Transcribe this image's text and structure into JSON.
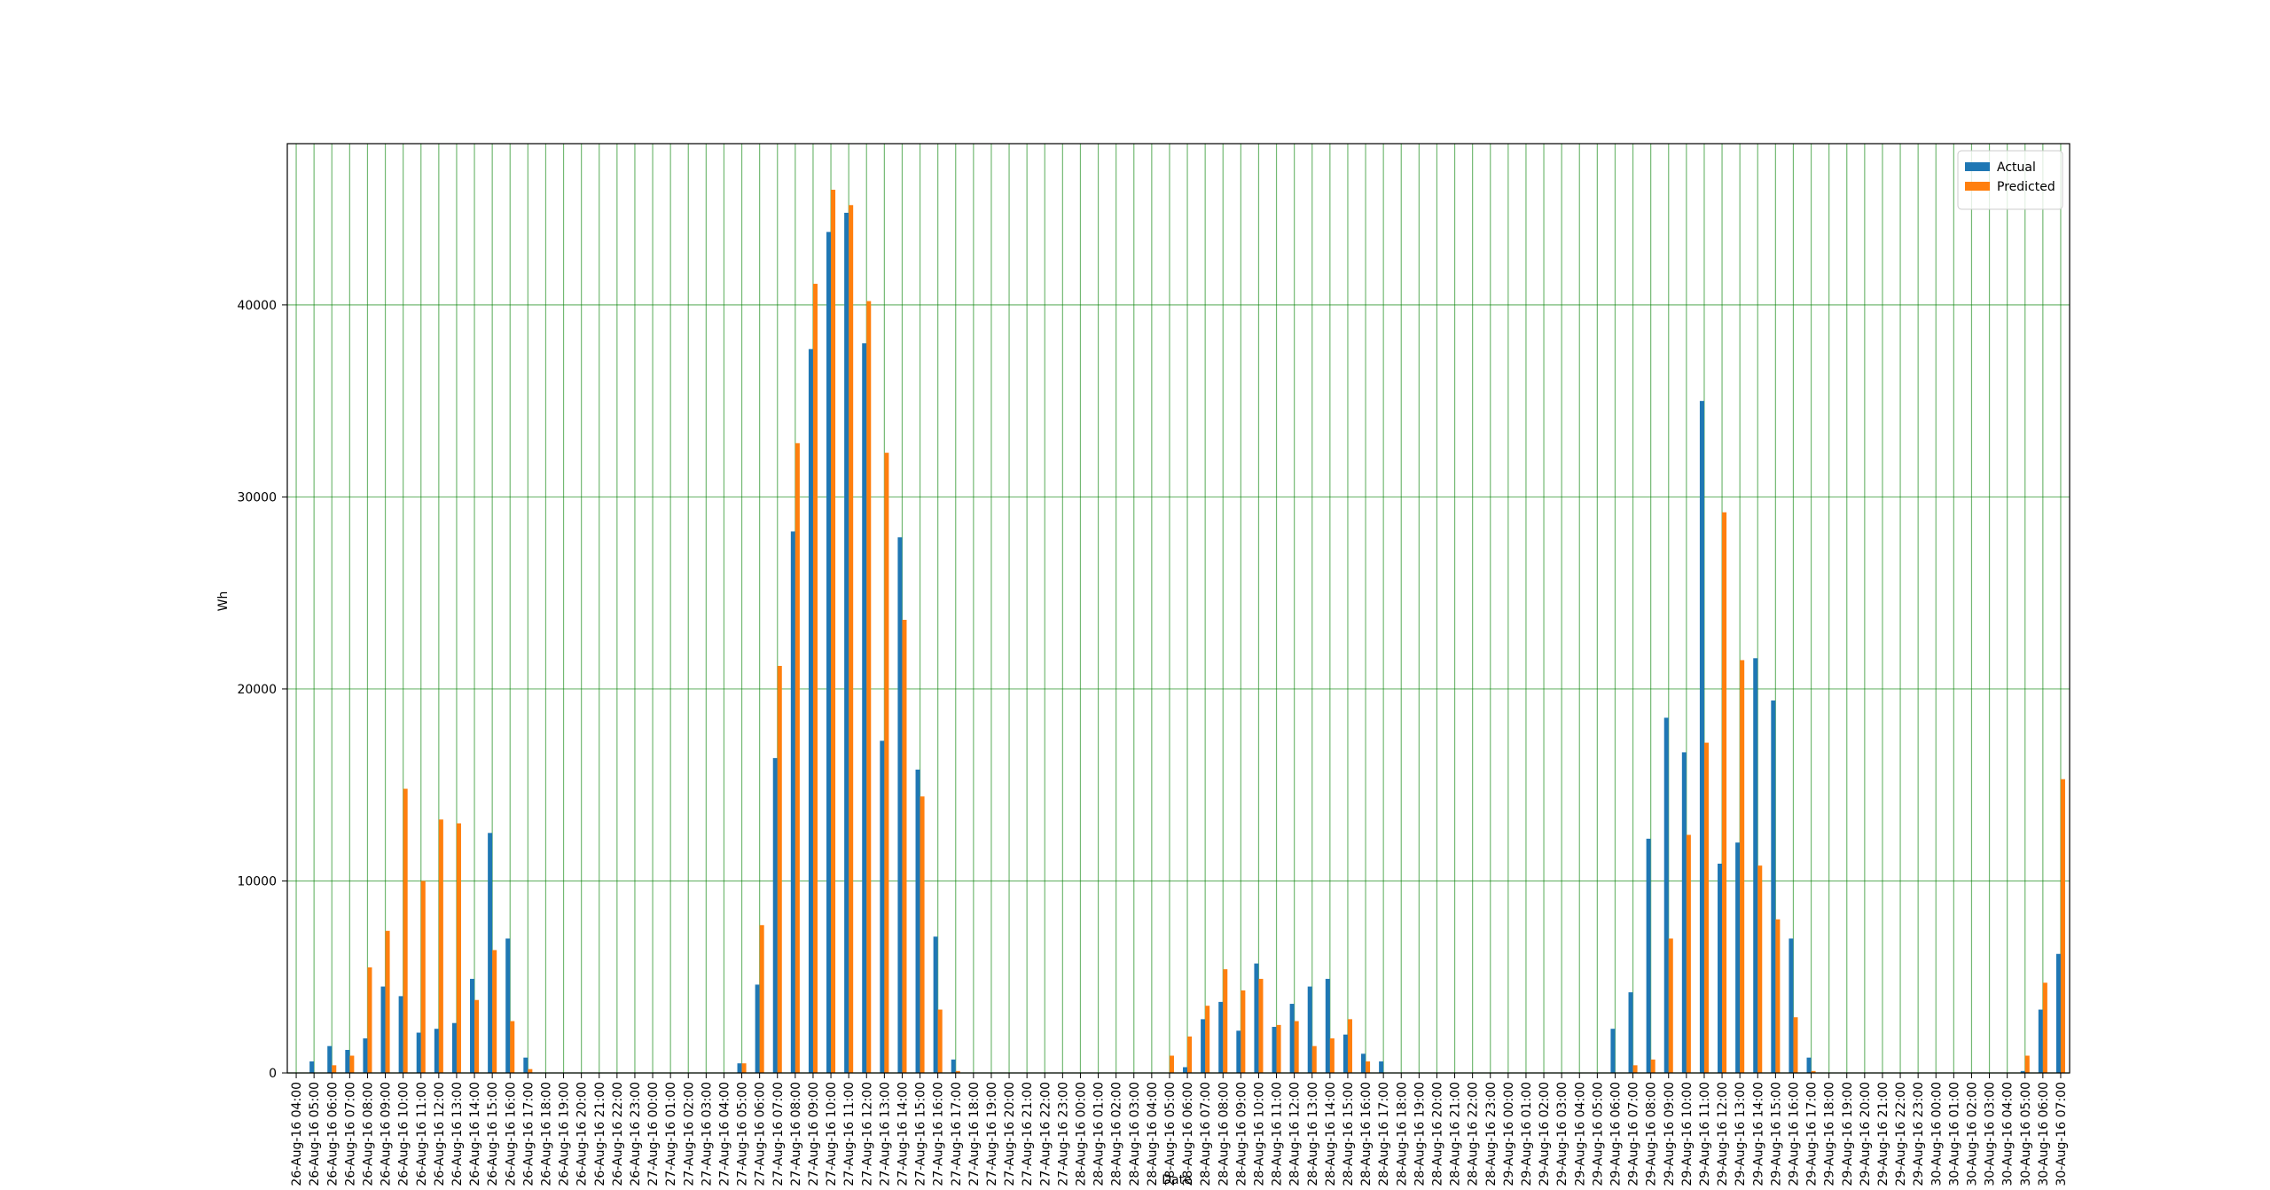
{
  "chart_data": {
    "type": "bar",
    "x_label": "Date",
    "y_label": "Wh",
    "categories": [
      "26-Aug-16 04:00",
      "26-Aug-16 05:00",
      "26-Aug-16 06:00",
      "26-Aug-16 07:00",
      "26-Aug-16 08:00",
      "26-Aug-16 09:00",
      "26-Aug-16 10:00",
      "26-Aug-16 11:00",
      "26-Aug-16 12:00",
      "26-Aug-16 13:00",
      "26-Aug-16 14:00",
      "26-Aug-16 15:00",
      "26-Aug-16 16:00",
      "26-Aug-16 17:00",
      "26-Aug-16 18:00",
      "26-Aug-16 19:00",
      "26-Aug-16 20:00",
      "26-Aug-16 21:00",
      "26-Aug-16 22:00",
      "26-Aug-16 23:00",
      "27-Aug-16 00:00",
      "27-Aug-16 01:00",
      "27-Aug-16 02:00",
      "27-Aug-16 03:00",
      "27-Aug-16 04:00",
      "27-Aug-16 05:00",
      "27-Aug-16 06:00",
      "27-Aug-16 07:00",
      "27-Aug-16 08:00",
      "27-Aug-16 09:00",
      "27-Aug-16 10:00",
      "27-Aug-16 11:00",
      "27-Aug-16 12:00",
      "27-Aug-16 13:00",
      "27-Aug-16 14:00",
      "27-Aug-16 15:00",
      "27-Aug-16 16:00",
      "27-Aug-16 17:00",
      "27-Aug-16 18:00",
      "27-Aug-16 19:00",
      "27-Aug-16 20:00",
      "27-Aug-16 21:00",
      "27-Aug-16 22:00",
      "27-Aug-16 23:00",
      "28-Aug-16 00:00",
      "28-Aug-16 01:00",
      "28-Aug-16 02:00",
      "28-Aug-16 03:00",
      "28-Aug-16 04:00",
      "28-Aug-16 05:00",
      "28-Aug-16 06:00",
      "28-Aug-16 07:00",
      "28-Aug-16 08:00",
      "28-Aug-16 09:00",
      "28-Aug-16 10:00",
      "28-Aug-16 11:00",
      "28-Aug-16 12:00",
      "28-Aug-16 13:00",
      "28-Aug-16 14:00",
      "28-Aug-16 15:00",
      "28-Aug-16 16:00",
      "28-Aug-16 17:00",
      "28-Aug-16 18:00",
      "28-Aug-16 19:00",
      "28-Aug-16 20:00",
      "28-Aug-16 21:00",
      "28-Aug-16 22:00",
      "28-Aug-16 23:00",
      "29-Aug-16 00:00",
      "29-Aug-16 01:00",
      "29-Aug-16 02:00",
      "29-Aug-16 03:00",
      "29-Aug-16 04:00",
      "29-Aug-16 05:00",
      "29-Aug-16 06:00",
      "29-Aug-16 07:00",
      "29-Aug-16 08:00",
      "29-Aug-16 09:00",
      "29-Aug-16 10:00",
      "29-Aug-16 11:00",
      "29-Aug-16 12:00",
      "29-Aug-16 13:00",
      "29-Aug-16 14:00",
      "29-Aug-16 15:00",
      "29-Aug-16 16:00",
      "29-Aug-16 17:00",
      "29-Aug-16 18:00",
      "29-Aug-16 19:00",
      "29-Aug-16 20:00",
      "29-Aug-16 21:00",
      "29-Aug-16 22:00",
      "29-Aug-16 23:00",
      "30-Aug-16 00:00",
      "30-Aug-16 01:00",
      "30-Aug-16 02:00",
      "30-Aug-16 03:00",
      "30-Aug-16 04:00",
      "30-Aug-16 05:00",
      "30-Aug-16 06:00",
      "30-Aug-16 07:00"
    ],
    "series": [
      {
        "name": "Actual",
        "color": "#1f77b4",
        "values": [
          0,
          600,
          1400,
          1200,
          1800,
          4500,
          4000,
          2100,
          2300,
          2600,
          4900,
          12500,
          7000,
          800,
          0,
          0,
          0,
          0,
          0,
          0,
          0,
          0,
          0,
          0,
          0,
          500,
          4600,
          16400,
          28200,
          37700,
          43800,
          44800,
          38000,
          17300,
          27900,
          15800,
          7100,
          700,
          0,
          0,
          0,
          0,
          0,
          0,
          0,
          0,
          0,
          0,
          0,
          0,
          300,
          2800,
          3700,
          2200,
          5700,
          2400,
          3600,
          4500,
          4900,
          2000,
          1000,
          600,
          0,
          0,
          0,
          0,
          0,
          0,
          0,
          0,
          0,
          0,
          0,
          0,
          2300,
          4200,
          12200,
          18500,
          16700,
          35000,
          10900,
          12000,
          21600,
          19400,
          7000,
          800,
          0,
          0,
          0,
          0,
          0,
          0,
          0,
          0,
          0,
          0,
          0,
          100,
          3300,
          6200
        ]
      },
      {
        "name": "Predicted",
        "color": "#ff7f0e",
        "values": [
          0,
          0,
          400,
          900,
          5500,
          7400,
          14800,
          10000,
          13200,
          13000,
          3800,
          6400,
          2700,
          200,
          0,
          0,
          0,
          0,
          0,
          0,
          0,
          0,
          0,
          0,
          0,
          500,
          7700,
          21200,
          32800,
          41100,
          46000,
          45200,
          40200,
          32300,
          23600,
          14400,
          3300,
          100,
          0,
          0,
          0,
          0,
          0,
          0,
          0,
          0,
          0,
          0,
          0,
          900,
          1900,
          3500,
          5400,
          4300,
          4900,
          2500,
          2700,
          1400,
          1800,
          2800,
          600,
          0,
          0,
          0,
          0,
          0,
          0,
          0,
          0,
          0,
          0,
          0,
          0,
          0,
          0,
          400,
          700,
          7000,
          12400,
          17200,
          29200,
          21500,
          10800,
          8000,
          2900,
          100,
          0,
          0,
          0,
          0,
          0,
          0,
          0,
          0,
          0,
          0,
          0,
          900,
          4700,
          15300
        ]
      }
    ],
    "ylim": [
      0,
      48400
    ],
    "yticks": [
      0,
      10000,
      20000,
      30000,
      40000
    ],
    "grid": true,
    "legend": "upper right"
  }
}
